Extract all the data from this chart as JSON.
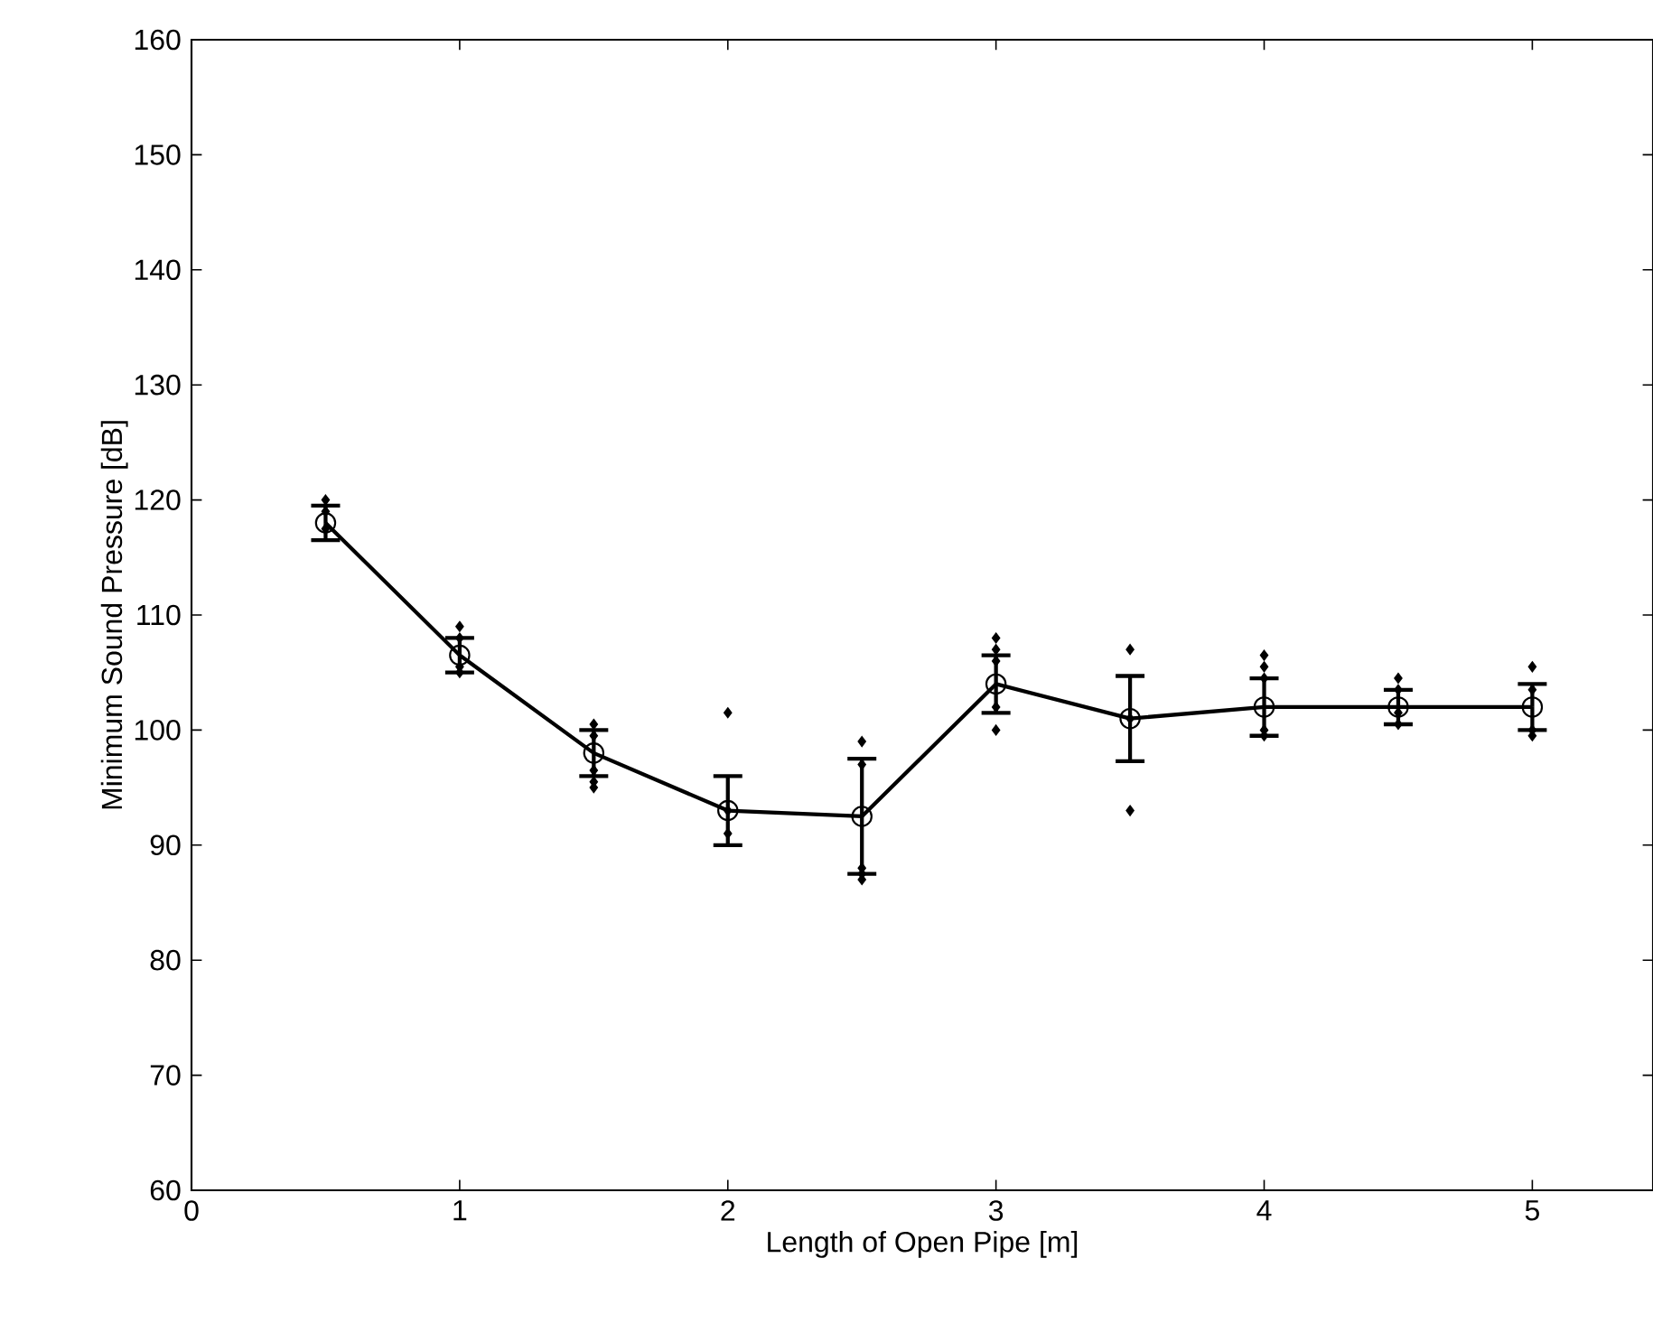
{
  "chart_data": {
    "type": "line",
    "xlabel": "Length of Open Pipe [m]",
    "ylabel": "Minimum Sound Pressure [dB]",
    "xlim": [
      0,
      5.45
    ],
    "ylim": [
      60,
      160
    ],
    "xticks": [
      0,
      1,
      2,
      3,
      4,
      5
    ],
    "yticks": [
      60,
      70,
      80,
      90,
      100,
      110,
      120,
      130,
      140,
      150,
      160
    ],
    "line_style": "solid",
    "series": [
      {
        "type": "scatter",
        "marker": "diamond",
        "color": "#000000",
        "x": [
          0.5,
          0.5,
          0.5,
          1,
          1,
          1,
          1,
          1.5,
          1.5,
          1.5,
          1.5,
          1.5,
          2,
          2,
          2,
          2.5,
          2.5,
          2.5,
          2.5,
          2.5,
          3,
          3,
          3,
          3,
          3,
          3.5,
          3.5,
          3.5,
          4,
          4,
          4,
          4,
          4,
          4.5,
          4.5,
          4.5,
          4.5,
          5,
          5,
          5,
          5
        ],
        "values": [
          120,
          119,
          117.5,
          109,
          108,
          105.5,
          105,
          100.5,
          99.5,
          96.5,
          95.5,
          95,
          101.5,
          93,
          91,
          99,
          97,
          88,
          87.5,
          87,
          108,
          107,
          106,
          102,
          100,
          107,
          93,
          101,
          106.5,
          105.5,
          104.5,
          100,
          99.5,
          104.5,
          103.5,
          101.5,
          100.5,
          105.5,
          103.5,
          100,
          99.5
        ]
      },
      {
        "marker": "circle",
        "color": "#000000",
        "x": [
          0.5,
          1,
          1.5,
          2,
          2.5,
          3,
          3.5,
          4,
          4.5,
          5
        ],
        "values": [
          118,
          106.5,
          98,
          93,
          92.5,
          104,
          101,
          102,
          102,
          102
        ],
        "errors": [
          1.5,
          1.5,
          2,
          3,
          5,
          2.5,
          3.7,
          2.5,
          1.5,
          2
        ]
      }
    ]
  }
}
